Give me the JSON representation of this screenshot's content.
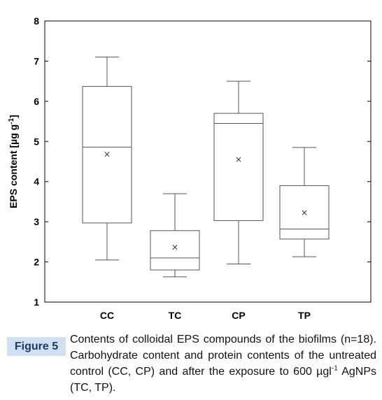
{
  "chart_data": {
    "type": "box",
    "title": "",
    "xlabel": "",
    "ylabel": {
      "main": "EPS content [µg g",
      "sup": "-1",
      "close": "]"
    },
    "ylim": [
      1,
      8
    ],
    "yticks": [
      "1",
      "2",
      "3",
      "4",
      "5",
      "6",
      "7",
      "8"
    ],
    "grid": false,
    "categories": [
      "CC",
      "TC",
      "CP",
      "TP"
    ],
    "boxes": [
      {
        "category": "CC",
        "min": 2.05,
        "q1": 2.97,
        "median": 4.86,
        "q3": 6.37,
        "max": 7.1,
        "mean": 4.68
      },
      {
        "category": "TC",
        "min": 1.63,
        "q1": 1.8,
        "median": 2.1,
        "q3": 2.78,
        "max": 3.7,
        "mean": 2.37
      },
      {
        "category": "CP",
        "min": 1.95,
        "q1": 3.03,
        "median": 5.45,
        "q3": 5.7,
        "max": 6.5,
        "mean": 4.55
      },
      {
        "category": "TP",
        "min": 2.13,
        "q1": 2.57,
        "median": 2.82,
        "q3": 3.9,
        "max": 4.85,
        "mean": 3.23
      }
    ],
    "mean_marker": "×"
  },
  "caption": {
    "label": "Figure 5",
    "text_before_sup": "Contents of colloidal EPS compounds of the biofilms (n=18). Carbohydrate content and protein contents of the untreated control (CC, CP) and after the exposure to 600 µgl",
    "sup": "-1",
    "text_after_sup": " AgNPs (TC, TP)."
  },
  "colors": {
    "caption_tag_bg": "#cfe0f1",
    "caption_tag_text": "#1f3864",
    "axes": "#000000",
    "boxes": "#555555"
  }
}
